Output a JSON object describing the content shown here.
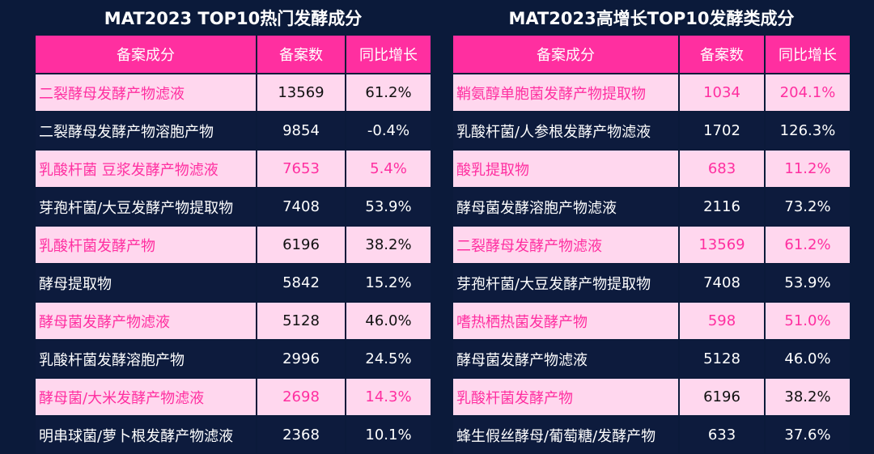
{
  "left": {
    "title": "MAT2023 TOP10热门发酵成分",
    "headers": [
      "备案成分",
      "备案数",
      "同比增长"
    ],
    "rows": [
      {
        "name": "二裂酵母发酵产物滤液",
        "count": "13569",
        "growth": "61.2%"
      },
      {
        "name": "二裂酵母发酵产物溶胞产物",
        "count": "9854",
        "growth": "-0.4%"
      },
      {
        "name": "乳酸杆菌 豆浆发酵产物滤液",
        "count": "7653",
        "growth": "5.4%"
      },
      {
        "name": "芽孢杆菌/大豆发酵产物提取物",
        "count": "7408",
        "growth": "53.9%"
      },
      {
        "name": "乳酸杆菌发酵产物",
        "count": "6196",
        "growth": "38.2%"
      },
      {
        "name": "酵母提取物",
        "count": "5842",
        "growth": "15.2%"
      },
      {
        "name": "酵母菌发酵产物滤液",
        "count": "5128",
        "growth": "46.0%"
      },
      {
        "name": "乳酸杆菌发酵溶胞产物",
        "count": "2996",
        "growth": "24.5%"
      },
      {
        "name": "酵母菌/大米发酵产物滤液",
        "count": "2698",
        "growth": "14.3%"
      },
      {
        "name": "明串球菌/萝卜根发酵产物滤液",
        "count": "2368",
        "growth": "10.1%"
      }
    ]
  },
  "right": {
    "title": "MAT2023高增长TOP10发酵类成分",
    "headers": [
      "备案成分",
      "备案数",
      "同比增长"
    ],
    "rows": [
      {
        "name": "鞘氨醇单胞菌发酵产物提取物",
        "count": "1034",
        "growth": "204.1%"
      },
      {
        "name": "乳酸杆菌/人参根发酵产物滤液",
        "count": "1702",
        "growth": "126.3%"
      },
      {
        "name": "酸乳提取物",
        "count": "683",
        "growth": "11.2%"
      },
      {
        "name": "酵母菌发酵溶胞产物滤液",
        "count": "2116",
        "growth": "73.2%"
      },
      {
        "name": "二裂酵母发酵产物滤液",
        "count": "13569",
        "growth": "61.2%"
      },
      {
        "name": "芽孢杆菌/大豆发酵产物提取物",
        "count": "7408",
        "growth": "53.9%"
      },
      {
        "name": "嗜热栖热菌发酵产物",
        "count": "598",
        "growth": "51.0%"
      },
      {
        "name": "酵母菌发酵产物滤液",
        "count": "5128",
        "growth": "46.0%"
      },
      {
        "name": "乳酸杆菌发酵产物",
        "count": "6196",
        "growth": "38.2%"
      },
      {
        "name": "蜂生假丝酵母/葡萄糖/发酵产物",
        "count": "633",
        "growth": "37.6%"
      }
    ]
  },
  "colors": {
    "background": "#0b1a3a",
    "header": "#ff2fa0",
    "light_row": "#ffd7ee",
    "dark_row": "#0d1b3d",
    "accent_text": "#ff2fa0"
  }
}
